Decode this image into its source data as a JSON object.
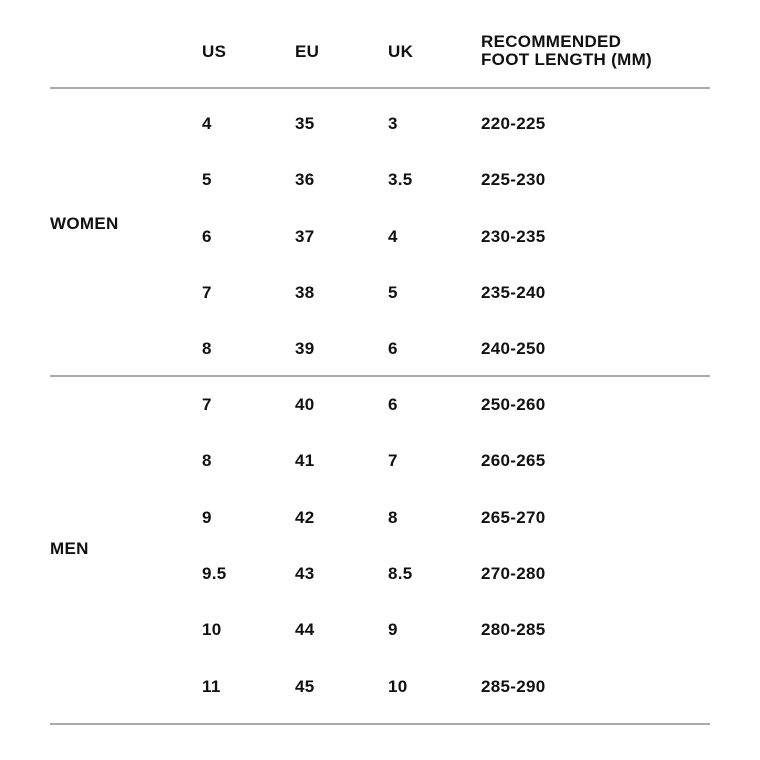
{
  "header": {
    "us": "US",
    "eu": "EU",
    "uk": "UK",
    "length_line1": "RECOMMENDED",
    "length_line2": "FOOT LENGTH (MM)"
  },
  "groups": [
    {
      "label": "WOMEN",
      "rows": [
        {
          "us": "4",
          "eu": "35",
          "uk": "3",
          "length": "220-225"
        },
        {
          "us": "5",
          "eu": "36",
          "uk": "3.5",
          "length": "225-230"
        },
        {
          "us": "6",
          "eu": "37",
          "uk": "4",
          "length": "230-235"
        },
        {
          "us": "7",
          "eu": "38",
          "uk": "5",
          "length": "235-240"
        },
        {
          "us": "8",
          "eu": "39",
          "uk": "6",
          "length": "240-250"
        }
      ]
    },
    {
      "label": "MEN",
      "rows": [
        {
          "us": "7",
          "eu": "40",
          "uk": "6",
          "length": "250-260"
        },
        {
          "us": "8",
          "eu": "41",
          "uk": "7",
          "length": "260-265"
        },
        {
          "us": "9",
          "eu": "42",
          "uk": "8",
          "length": "265-270"
        },
        {
          "us": "9.5",
          "eu": "43",
          "uk": "8.5",
          "length": "270-280"
        },
        {
          "us": "10",
          "eu": "44",
          "uk": "9",
          "length": "280-285"
        },
        {
          "us": "11",
          "eu": "45",
          "uk": "10",
          "length": "285-290"
        }
      ]
    }
  ]
}
